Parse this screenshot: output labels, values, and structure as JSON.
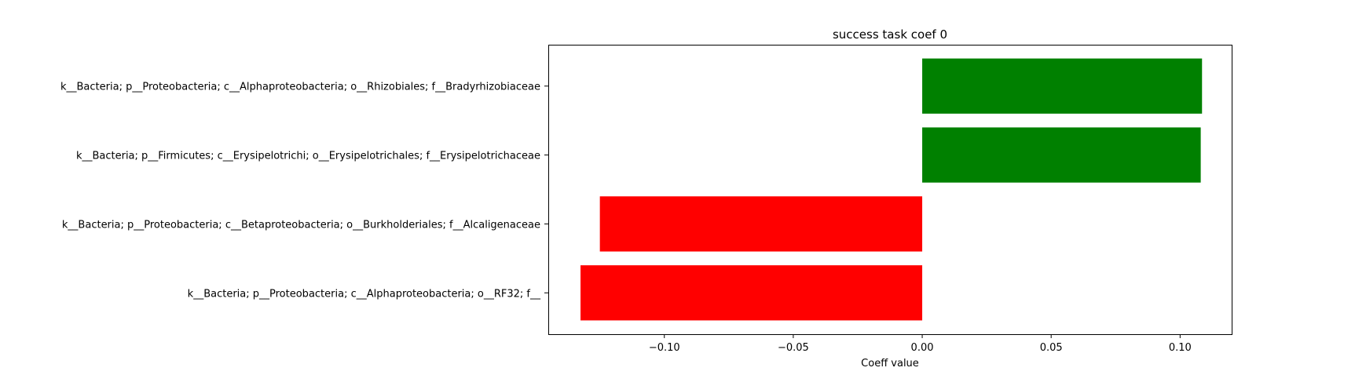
{
  "chart_data": {
    "type": "bar",
    "orientation": "horizontal",
    "title": "success task coef 0",
    "xlabel": "Coeff value",
    "ylabel": "",
    "xlim": [
      -0.145,
      0.12
    ],
    "xticks": [
      -0.1,
      -0.05,
      0.0,
      0.05,
      0.1
    ],
    "xtick_labels": [
      "−0.10",
      "−0.05",
      "0.00",
      "0.05",
      "0.10"
    ],
    "grid": false,
    "legend": false,
    "categories": [
      "k__Bacteria; p__Proteobacteria; c__Alphaproteobacteria; o__Rhizobiales; f__Bradyrhizobiaceae",
      "k__Bacteria; p__Firmicutes; c__Erysipelotrichi; o__Erysipelotrichales; f__Erysipelotrichaceae",
      "k__Bacteria; p__Proteobacteria; c__Betaproteobacteria; o__Burkholderiales; f__Alcaligenaceae",
      "k__Bacteria; p__Proteobacteria; c__Alphaproteobacteria; o__RF32; f__"
    ],
    "values": [
      0.1085,
      0.108,
      -0.125,
      -0.1325
    ],
    "colors": [
      "#008000",
      "#008000",
      "#ff0000",
      "#ff0000"
    ]
  }
}
